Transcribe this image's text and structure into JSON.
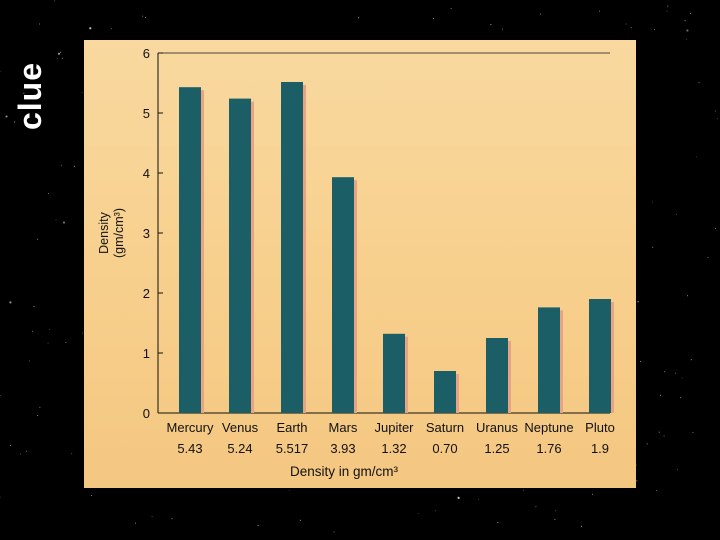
{
  "slide": {
    "title": "clue"
  },
  "chart_data": {
    "type": "bar",
    "categories": [
      "Mercury",
      "Venus",
      "Earth",
      "Mars",
      "Jupiter",
      "Saturn",
      "Uranus",
      "Neptune",
      "Pluto"
    ],
    "value_labels": [
      "5.43",
      "5.24",
      "5.517",
      "3.93",
      "1.32",
      "0.70",
      "1.25",
      "1.76",
      "1.9"
    ],
    "values": [
      5.43,
      5.24,
      5.517,
      3.93,
      1.32,
      0.7,
      1.25,
      1.76,
      1.9
    ],
    "ylabel_line1": "Density",
    "ylabel_line2": "(gm/cm³)",
    "xlabel": "Density in gm/cm³",
    "ylim": [
      0,
      6
    ],
    "yticks": [
      0,
      1,
      2,
      3,
      4,
      5,
      6
    ],
    "grid": false,
    "colors": {
      "bar": "#1b5e66",
      "shadow": "#e8a384",
      "axis": "#111111",
      "background": "#f8d596"
    }
  }
}
